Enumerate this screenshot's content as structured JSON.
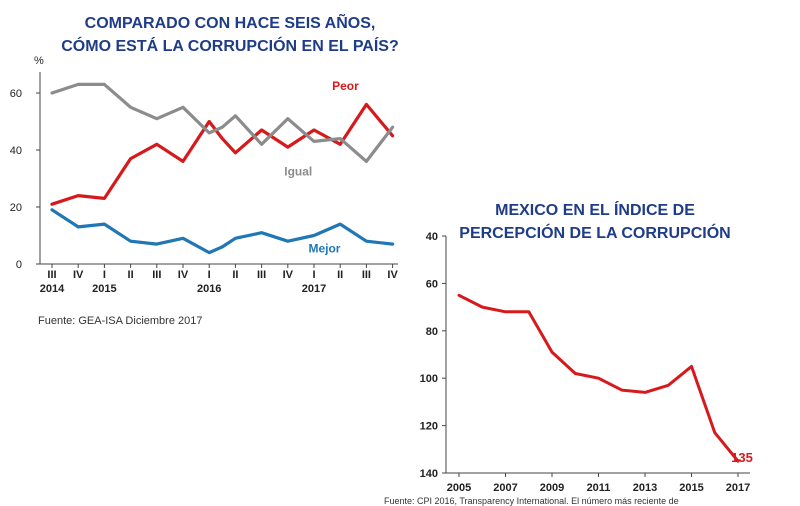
{
  "charts": {
    "left_title_line1": "COMPARADO CON HACE SEIS AÑOS,",
    "left_title_line2": "CÓMO ESTÁ LA CORRUPCIÓN EN EL PAÍS?",
    "right_title_line1": "MEXICO EN EL ÍNDICE DE",
    "right_title_line2": "PERCEPCIÓN DE LA CORRUPCIÓN",
    "left_source": "Fuente: GEA-ISA Diciembre 2017",
    "right_source": "Fuente: CPI 2016, Transparency International. El número más reciente de"
  },
  "chart_data": [
    {
      "type": "line",
      "title": "COMPARADO CON HACE SEIS AÑOS, CÓMO ESTÁ LA CORRUPCIÓN EN EL PAÍS?",
      "ylabel": "%",
      "ylim": [
        0,
        70
      ],
      "yticks": [
        0,
        20,
        40,
        60
      ],
      "quarter_labels": [
        "III",
        "IV",
        "I",
        "II",
        "III",
        "IV",
        "I",
        "II",
        "III",
        "IV",
        "I",
        "II",
        "III",
        "IV"
      ],
      "quarter_index": [
        0,
        1,
        2,
        3,
        4,
        5,
        6,
        7,
        8,
        9,
        10,
        11,
        12,
        13
      ],
      "year_labels": [
        {
          "label": "2014",
          "at": 0
        },
        {
          "label": "2015",
          "at": 2
        },
        {
          "label": "2016",
          "at": 6
        },
        {
          "label": "2017",
          "at": 10
        }
      ],
      "x": [
        0,
        1,
        2,
        3,
        4,
        5,
        6,
        6.5,
        7,
        8,
        9,
        10,
        11,
        12,
        13
      ],
      "series": [
        {
          "name": "Peor",
          "color": "#d7191c",
          "values": [
            21,
            24,
            23,
            37,
            42,
            36,
            50,
            44,
            39,
            47,
            41,
            47,
            42,
            56,
            45
          ]
        },
        {
          "name": "Igual",
          "color": "#8c8c8c",
          "values": [
            60,
            63,
            63,
            55,
            51,
            55,
            46,
            48,
            52,
            42,
            51,
            43,
            44,
            36,
            48
          ]
        },
        {
          "name": "Mejor",
          "color": "#1f77b4",
          "values": [
            19,
            13,
            14,
            8,
            7,
            9,
            4,
            6,
            9,
            11,
            8,
            10,
            14,
            8,
            7
          ]
        }
      ],
      "grid": false,
      "legend": "inline"
    },
    {
      "type": "line",
      "title": "MEXICO EN EL ÍNDICE DE PERCEPCIÓN DE LA CORRUPCIÓN",
      "ylim": [
        40,
        140
      ],
      "y_inverted": true,
      "yticks": [
        40,
        60,
        80,
        100,
        120,
        140
      ],
      "xticks": [
        "2005",
        "2007",
        "2009",
        "2011",
        "2013",
        "2015",
        "2017"
      ],
      "xlim": [
        2005,
        2017
      ],
      "x": [
        2005,
        2006,
        2007,
        2008,
        2009,
        2010,
        2011,
        2012,
        2013,
        2014,
        2015,
        2016,
        2017
      ],
      "series": [
        {
          "color": "#d7191c",
          "values": [
            65,
            70,
            72,
            72,
            89,
            98,
            100,
            105,
            106,
            103,
            95,
            123,
            135
          ]
        }
      ],
      "annotations": [
        {
          "text": "135",
          "x": 2017,
          "y": 135
        }
      ],
      "grid": false
    }
  ]
}
